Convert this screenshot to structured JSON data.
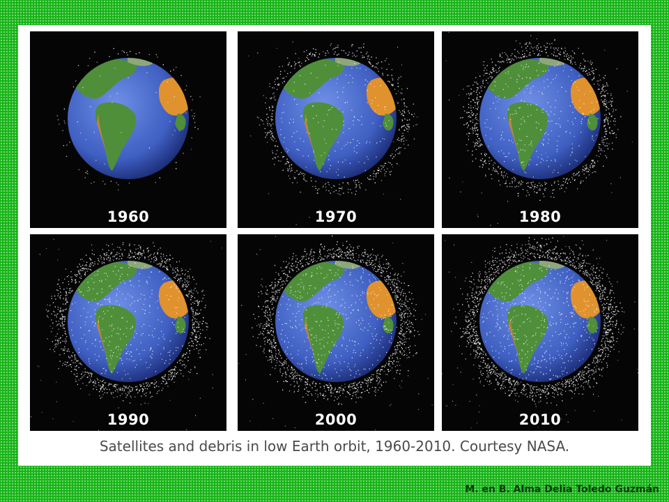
{
  "panels": [
    {
      "year": "1960",
      "debris_level": 0.05
    },
    {
      "year": "1970",
      "debris_level": 0.35
    },
    {
      "year": "1980",
      "debris_level": 0.55
    },
    {
      "year": "1990",
      "debris_level": 0.7
    },
    {
      "year": "2000",
      "debris_level": 0.85
    },
    {
      "year": "2010",
      "debris_level": 1.0
    }
  ],
  "caption": "Satellites and debris in low Earth orbit, 1960-2010.  Courtesy NASA.",
  "credit": "M. en B. Alma Delia Toledo Guzmán",
  "colors": {
    "background": "#19b319",
    "frame": "#ffffff",
    "space": "#050505",
    "ocean": "#3f5fc2",
    "land": "#4f8f3a",
    "desert": "#e0922e",
    "debris": "#ffffff"
  }
}
